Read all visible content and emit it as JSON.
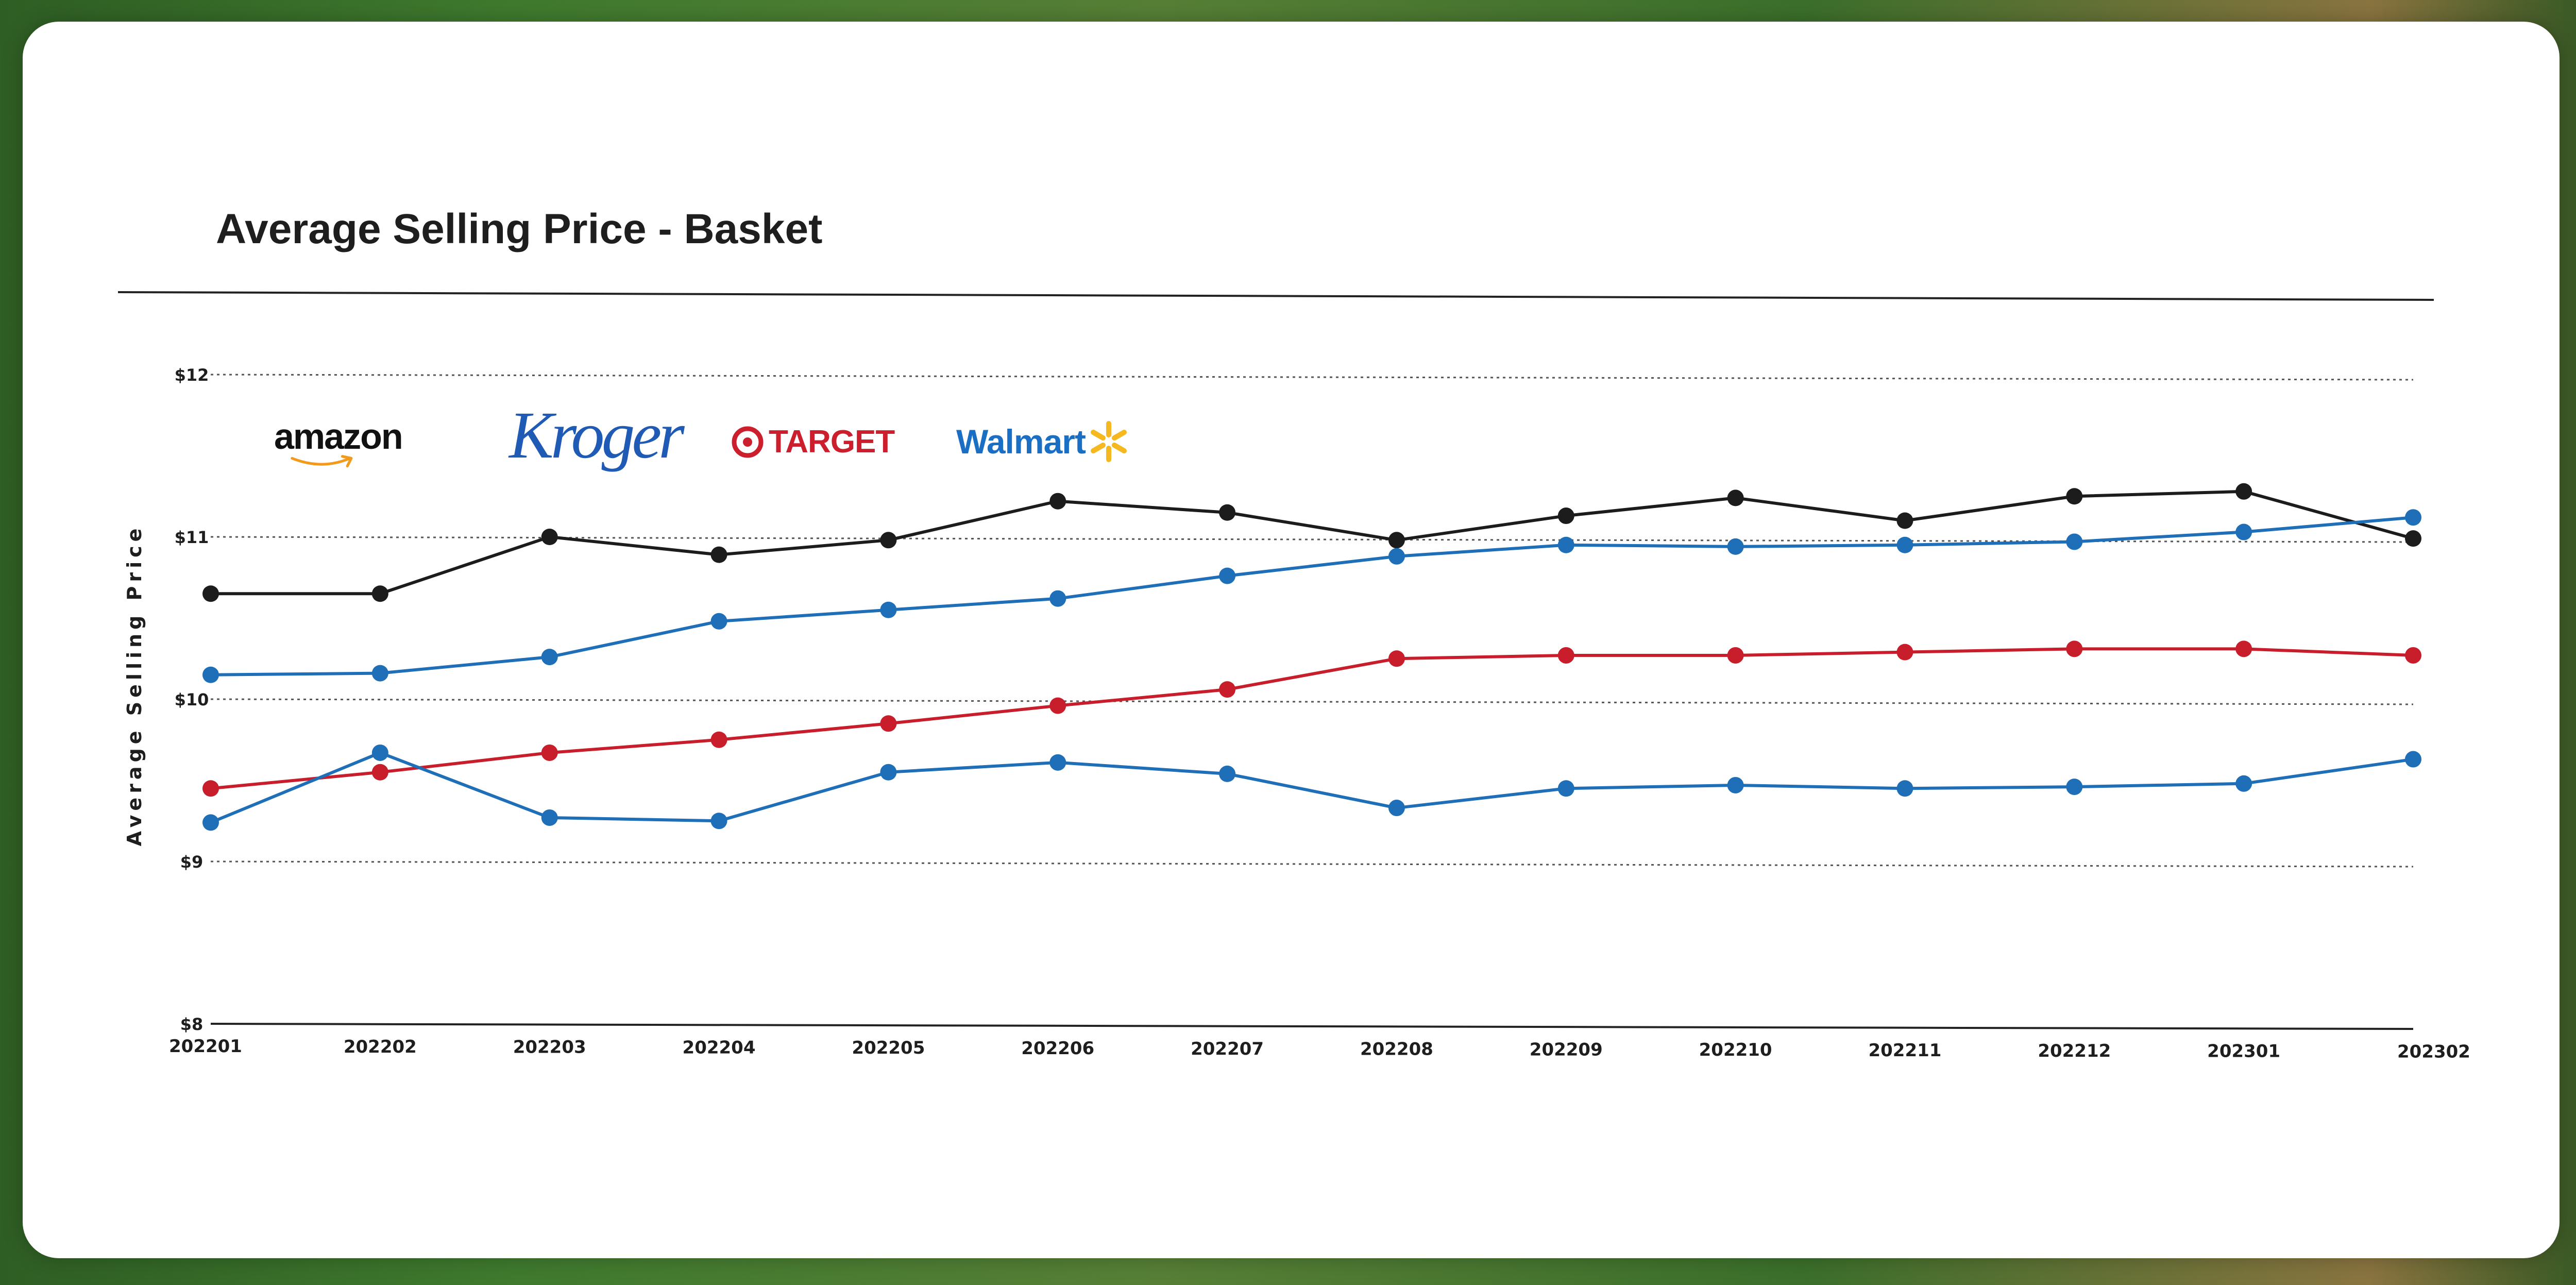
{
  "chart_data": {
    "type": "line",
    "title": "Average Selling Price - Basket",
    "xlabel": "",
    "ylabel": "Average Selling Price",
    "ylim": [
      8,
      12
    ],
    "yticks": [
      "$8",
      "$9",
      "$10",
      "$11",
      "$12"
    ],
    "grid": true,
    "legend": "logos at top-left",
    "categories": [
      "202201",
      "202202",
      "202203",
      "202204",
      "202205",
      "202206",
      "202207",
      "202208",
      "202209",
      "202210",
      "202211",
      "202212",
      "202301",
      "202302"
    ],
    "series": [
      {
        "color": "#1c1c1c",
        "values": [
          10.65,
          10.65,
          11.0,
          10.89,
          10.98,
          11.22,
          11.15,
          10.98,
          11.13,
          11.24,
          11.1,
          11.25,
          11.28,
          10.99
        ]
      },
      {
        "color": "#1e6fb8",
        "values": [
          10.15,
          10.16,
          10.26,
          10.48,
          10.55,
          10.62,
          10.76,
          10.88,
          10.95,
          10.94,
          10.95,
          10.97,
          11.03,
          11.12
        ]
      },
      {
        "color": "#c81d2a",
        "values": [
          9.45,
          9.55,
          9.67,
          9.75,
          9.85,
          9.96,
          10.06,
          10.25,
          10.27,
          10.27,
          10.29,
          10.31,
          10.31,
          10.27
        ]
      },
      {
        "color": "#1e6fb8",
        "values": [
          9.24,
          9.67,
          9.27,
          9.25,
          9.55,
          9.61,
          9.54,
          9.33,
          9.45,
          9.47,
          9.45,
          9.46,
          9.48,
          9.63
        ]
      }
    ]
  },
  "legend_logos": [
    {
      "name": "amazon",
      "label": "amazon",
      "color": "#111111"
    },
    {
      "name": "kroger",
      "label": "Kroger",
      "color": "#1f5bb5"
    },
    {
      "name": "target",
      "label": "TARGET",
      "color": "#cc1f2d"
    },
    {
      "name": "walmart",
      "label": "Walmart",
      "color": "#1a6fc4"
    }
  ]
}
